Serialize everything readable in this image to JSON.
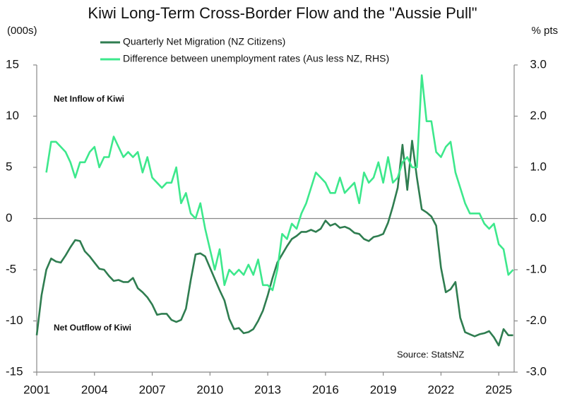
{
  "chart_data": {
    "type": "line",
    "title": "Kiwi Long-Term Cross-Border Flow and the \"Aussie Pull\"",
    "y_label": "(000s)",
    "y2_label": "% pts",
    "annotations": [
      "Net Inflow of Kiwi",
      "Net Outflow of Kiwi",
      "Source: StatsNZ"
    ],
    "legend": "top",
    "x": [
      2001,
      2001.25,
      2001.5,
      2001.75,
      2002,
      2002.25,
      2002.5,
      2002.75,
      2003,
      2003.25,
      2003.5,
      2003.75,
      2004,
      2004.25,
      2004.5,
      2004.75,
      2005,
      2005.25,
      2005.5,
      2005.75,
      2006,
      2006.25,
      2006.5,
      2006.75,
      2007,
      2007.25,
      2007.5,
      2007.75,
      2008,
      2008.25,
      2008.5,
      2008.75,
      2009,
      2009.25,
      2009.5,
      2009.75,
      2010,
      2010.25,
      2010.5,
      2010.75,
      2011,
      2011.25,
      2011.5,
      2011.75,
      2012,
      2012.25,
      2012.5,
      2012.75,
      2013,
      2013.25,
      2013.5,
      2013.75,
      2014,
      2014.25,
      2014.5,
      2014.75,
      2015,
      2015.25,
      2015.5,
      2015.75,
      2016,
      2016.25,
      2016.5,
      2016.75,
      2017,
      2017.25,
      2017.5,
      2017.75,
      2018,
      2018.25,
      2018.5,
      2018.75,
      2019,
      2019.25,
      2019.5,
      2019.75,
      2020,
      2020.25,
      2020.5,
      2020.75,
      2021,
      2021.25,
      2021.5,
      2021.75,
      2022,
      2022.25,
      2022.5,
      2022.75,
      2023,
      2023.25,
      2023.5,
      2023.75,
      2024,
      2024.25,
      2024.5,
      2024.75,
      2025,
      2025.25,
      2025.5,
      2025.75
    ],
    "series": [
      {
        "name": "Quarterly Net Migration (NZ Citizens)",
        "color": "#2f7d50",
        "axis": "y",
        "values": [
          -11.4,
          -7.5,
          -5,
          -3.9,
          -4.2,
          -4.3,
          -3.6,
          -2.8,
          -2.1,
          -2.2,
          -3.2,
          -3.7,
          -4.3,
          -4.9,
          -5,
          -5.6,
          -6.1,
          -6,
          -6.2,
          -6.2,
          -5.8,
          -6.8,
          -7.2,
          -7.7,
          -8.4,
          -9.4,
          -9.3,
          -9.3,
          -9.9,
          -10.1,
          -9.9,
          -8.8,
          -6,
          -3.5,
          -3.4,
          -3.7,
          -4.8,
          -5.9,
          -7,
          -8,
          -9.8,
          -10.8,
          -10.7,
          -11.2,
          -11.1,
          -10.8,
          -10,
          -9,
          -7.5,
          -5.8,
          -4.3,
          -3.5,
          -2.7,
          -2,
          -1.7,
          -1.3,
          -1.3,
          -1.1,
          -1.3,
          -1,
          -0.2,
          -0.7,
          -0.5,
          -0.9,
          -0.8,
          -1,
          -1.4,
          -1.5,
          -2,
          -2.2,
          -1.8,
          -1.7,
          -1.5,
          -0.4,
          1.2,
          3,
          7.2,
          2.8,
          7.6,
          4,
          0.9,
          0.6,
          0.2,
          -0.7,
          -4.8,
          -7.2,
          -6.9,
          -6.2,
          -9.7,
          -11.1,
          -11.3,
          -11.5,
          -11.3,
          -11.2,
          -11,
          -11.6,
          -12.4,
          -10.8,
          -11.4,
          -11.4
        ]
      },
      {
        "name": "Difference between unemployment rates (Aus less NZ, RHS)",
        "color": "#3de88c",
        "axis": "y2",
        "values": [
          null,
          null,
          0.9,
          1.5,
          1.5,
          1.4,
          1.3,
          1.1,
          0.8,
          1.1,
          1.1,
          1.3,
          1.4,
          1,
          1.2,
          1.2,
          1.6,
          1.4,
          1.2,
          1.3,
          1.2,
          1.3,
          0.9,
          1.2,
          0.8,
          0.7,
          0.6,
          0.7,
          0.7,
          1,
          0.3,
          0.5,
          0.1,
          0,
          0.3,
          -0.2,
          -0.6,
          -1,
          -0.6,
          -1.3,
          -1,
          -1.1,
          -1,
          -1.1,
          -0.9,
          -1.1,
          -0.8,
          -1.3,
          -1.3,
          -1.4,
          -1,
          -0.3,
          -0.4,
          -0.1,
          -0.2,
          0.1,
          0.3,
          0.6,
          0.9,
          0.8,
          0.7,
          0.5,
          0.5,
          0.8,
          0.5,
          0.6,
          0.7,
          0.3,
          0.9,
          0.7,
          0.8,
          1.1,
          0.7,
          1.2,
          0.7,
          0.8,
          1.1,
          1.2,
          1,
          1,
          2.8,
          1.9,
          1.9,
          1.3,
          1.2,
          1.4,
          1.5,
          0.9,
          0.6,
          0.3,
          0.1,
          0.1,
          0.1,
          -0.1,
          -0.2,
          -0.1,
          -0.5,
          -0.6,
          -1.1,
          -1
        ]
      }
    ],
    "xlim": [
      2001,
      2025.8
    ],
    "xticks": [
      2001,
      2004,
      2007,
      2010,
      2013,
      2016,
      2019,
      2022,
      2025
    ],
    "ylim": [
      -15,
      15
    ],
    "yticks": [
      15,
      10,
      5,
      0,
      -5,
      -10,
      -15
    ],
    "y2lim": [
      -3,
      3
    ],
    "y2ticks": [
      {
        "value": 3,
        "label": "3.0"
      },
      {
        "value": 2,
        "label": "2.0"
      },
      {
        "value": 1,
        "label": "1.0"
      },
      {
        "value": 0,
        "label": "0.0"
      },
      {
        "value": -1,
        "label": "-1.0"
      },
      {
        "value": -2,
        "label": "-2.0"
      },
      {
        "value": -3,
        "label": "-3.0"
      }
    ]
  }
}
